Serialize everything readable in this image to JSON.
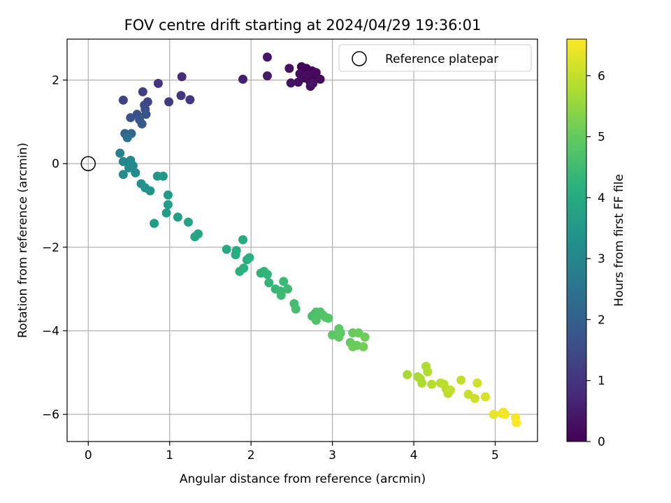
{
  "chart_data": {
    "type": "scatter",
    "title": "FOV centre drift starting at 2024/04/29 19:36:01",
    "xlabel": "Angular distance from reference (arcmin)",
    "ylabel": "Rotation from reference (arcmin)",
    "xlim": [
      -0.26,
      5.52
    ],
    "ylim": [
      -6.65,
      2.98
    ],
    "xticks": [
      0,
      1,
      2,
      3,
      4,
      5
    ],
    "yticks": [
      -6,
      -4,
      -2,
      0,
      2
    ],
    "grid": true,
    "legend": {
      "location": "top-right",
      "entries": [
        {
          "label": "Reference platepar",
          "marker": "open-circle"
        }
      ]
    },
    "reference_point": {
      "x": 0,
      "y": 0
    },
    "colorbar": {
      "label": "Hours from first FF file",
      "range": [
        0,
        6.6
      ],
      "ticks": [
        0,
        1,
        2,
        3,
        4,
        5,
        6
      ],
      "colormap": "viridis"
    },
    "series": [
      {
        "color_key": "hours",
        "points": [
          {
            "x": 2.68,
            "y": 2.28,
            "c": 0.02
          },
          {
            "x": 2.75,
            "y": 2.22,
            "c": 0.05
          },
          {
            "x": 2.62,
            "y": 2.32,
            "c": 0.08
          },
          {
            "x": 2.78,
            "y": 2.1,
            "c": 0.1
          },
          {
            "x": 2.65,
            "y": 2.05,
            "c": 0.12
          },
          {
            "x": 2.72,
            "y": 1.98,
            "c": 0.14
          },
          {
            "x": 2.8,
            "y": 2.18,
            "c": 0.16
          },
          {
            "x": 2.7,
            "y": 2.12,
            "c": 0.18
          },
          {
            "x": 2.85,
            "y": 2.02,
            "c": 0.2
          },
          {
            "x": 2.6,
            "y": 2.15,
            "c": 0.22
          },
          {
            "x": 2.73,
            "y": 1.85,
            "c": 0.24
          },
          {
            "x": 2.58,
            "y": 1.95,
            "c": 0.26
          },
          {
            "x": 2.47,
            "y": 2.28,
            "c": 0.3
          },
          {
            "x": 2.49,
            "y": 1.93,
            "c": 0.33
          },
          {
            "x": 2.76,
            "y": 1.92,
            "c": 0.36
          },
          {
            "x": 2.2,
            "y": 2.55,
            "c": 0.42
          },
          {
            "x": 2.2,
            "y": 2.1,
            "c": 0.46
          },
          {
            "x": 1.9,
            "y": 2.02,
            "c": 0.55
          },
          {
            "x": 1.15,
            "y": 2.08,
            "c": 0.8
          },
          {
            "x": 0.86,
            "y": 1.92,
            "c": 0.95
          },
          {
            "x": 1.14,
            "y": 1.63,
            "c": 1.05
          },
          {
            "x": 1.25,
            "y": 1.53,
            "c": 1.1
          },
          {
            "x": 0.99,
            "y": 1.48,
            "c": 1.15
          },
          {
            "x": 0.67,
            "y": 1.72,
            "c": 1.25
          },
          {
            "x": 0.43,
            "y": 1.52,
            "c": 1.3
          },
          {
            "x": 0.73,
            "y": 1.48,
            "c": 1.4
          },
          {
            "x": 0.69,
            "y": 1.4,
            "c": 1.45
          },
          {
            "x": 0.7,
            "y": 1.3,
            "c": 1.55
          },
          {
            "x": 0.6,
            "y": 1.18,
            "c": 1.6
          },
          {
            "x": 0.71,
            "y": 1.18,
            "c": 1.65
          },
          {
            "x": 0.52,
            "y": 1.1,
            "c": 1.7
          },
          {
            "x": 0.63,
            "y": 1.05,
            "c": 1.75
          },
          {
            "x": 0.66,
            "y": 0.95,
            "c": 1.85
          },
          {
            "x": 0.45,
            "y": 0.72,
            "c": 2.1
          },
          {
            "x": 0.53,
            "y": 0.72,
            "c": 2.2
          },
          {
            "x": 0.48,
            "y": 0.62,
            "c": 2.4
          },
          {
            "x": 0.39,
            "y": 0.25,
            "c": 2.9
          },
          {
            "x": 0.43,
            "y": 0.05,
            "c": 3.0
          },
          {
            "x": 0.52,
            "y": 0.08,
            "c": 3.05
          },
          {
            "x": 0.55,
            "y": -0.05,
            "c": 3.1
          },
          {
            "x": 0.5,
            "y": -0.1,
            "c": 3.12
          },
          {
            "x": 0.58,
            "y": -0.22,
            "c": 3.15
          },
          {
            "x": 0.43,
            "y": -0.26,
            "c": 3.2
          },
          {
            "x": 0.65,
            "y": -0.48,
            "c": 3.3
          },
          {
            "x": 0.7,
            "y": -0.58,
            "c": 3.35
          },
          {
            "x": 0.76,
            "y": -0.65,
            "c": 3.4
          },
          {
            "x": 0.85,
            "y": -0.3,
            "c": 3.45
          },
          {
            "x": 0.92,
            "y": -0.3,
            "c": 3.5
          },
          {
            "x": 0.98,
            "y": -0.75,
            "c": 3.55
          },
          {
            "x": 0.98,
            "y": -0.98,
            "c": 3.6
          },
          {
            "x": 0.96,
            "y": -1.18,
            "c": 3.62
          },
          {
            "x": 0.81,
            "y": -1.43,
            "c": 3.65
          },
          {
            "x": 1.1,
            "y": -1.28,
            "c": 3.7
          },
          {
            "x": 1.23,
            "y": -1.4,
            "c": 3.75
          },
          {
            "x": 1.31,
            "y": -1.75,
            "c": 3.8
          },
          {
            "x": 1.35,
            "y": -1.68,
            "c": 3.85
          },
          {
            "x": 1.7,
            "y": -2.05,
            "c": 4.0
          },
          {
            "x": 1.82,
            "y": -2.08,
            "c": 4.05
          },
          {
            "x": 1.81,
            "y": -2.18,
            "c": 4.08
          },
          {
            "x": 1.9,
            "y": -1.82,
            "c": 4.1
          },
          {
            "x": 1.95,
            "y": -2.3,
            "c": 4.12
          },
          {
            "x": 1.98,
            "y": -2.25,
            "c": 4.15
          },
          {
            "x": 1.91,
            "y": -2.5,
            "c": 4.18
          },
          {
            "x": 1.86,
            "y": -2.58,
            "c": 4.2
          },
          {
            "x": 2.12,
            "y": -2.62,
            "c": 4.25
          },
          {
            "x": 2.16,
            "y": -2.58,
            "c": 4.28
          },
          {
            "x": 2.2,
            "y": -2.65,
            "c": 4.3
          },
          {
            "x": 2.22,
            "y": -2.85,
            "c": 4.32
          },
          {
            "x": 2.3,
            "y": -3.0,
            "c": 4.38
          },
          {
            "x": 2.36,
            "y": -3.05,
            "c": 4.4
          },
          {
            "x": 2.4,
            "y": -2.82,
            "c": 4.42
          },
          {
            "x": 2.45,
            "y": -3.0,
            "c": 4.45
          },
          {
            "x": 2.37,
            "y": -3.15,
            "c": 4.48
          },
          {
            "x": 2.53,
            "y": -3.35,
            "c": 4.55
          },
          {
            "x": 2.55,
            "y": -3.48,
            "c": 4.58
          },
          {
            "x": 2.75,
            "y": -3.65,
            "c": 4.65
          },
          {
            "x": 2.78,
            "y": -3.6,
            "c": 4.68
          },
          {
            "x": 2.8,
            "y": -3.55,
            "c": 4.7
          },
          {
            "x": 2.85,
            "y": -3.55,
            "c": 4.72
          },
          {
            "x": 2.8,
            "y": -3.75,
            "c": 4.75
          },
          {
            "x": 2.88,
            "y": -3.62,
            "c": 4.78
          },
          {
            "x": 2.92,
            "y": -3.68,
            "c": 4.8
          },
          {
            "x": 2.95,
            "y": -3.7,
            "c": 4.82
          },
          {
            "x": 3.0,
            "y": -4.1,
            "c": 4.9
          },
          {
            "x": 3.08,
            "y": -3.95,
            "c": 4.92
          },
          {
            "x": 3.1,
            "y": -4.05,
            "c": 4.95
          },
          {
            "x": 3.08,
            "y": -4.15,
            "c": 4.97
          },
          {
            "x": 3.22,
            "y": -4.28,
            "c": 5.0
          },
          {
            "x": 3.25,
            "y": -4.05,
            "c": 5.02
          },
          {
            "x": 3.32,
            "y": -4.05,
            "c": 5.05
          },
          {
            "x": 3.3,
            "y": -4.35,
            "c": 5.08
          },
          {
            "x": 3.25,
            "y": -4.38,
            "c": 5.1
          },
          {
            "x": 3.4,
            "y": -4.15,
            "c": 5.12
          },
          {
            "x": 3.38,
            "y": -4.38,
            "c": 5.15
          },
          {
            "x": 3.92,
            "y": -5.05,
            "c": 5.7
          },
          {
            "x": 4.05,
            "y": -5.1,
            "c": 5.72
          },
          {
            "x": 4.08,
            "y": -5.15,
            "c": 5.75
          },
          {
            "x": 4.1,
            "y": -5.25,
            "c": 5.78
          },
          {
            "x": 4.15,
            "y": -4.85,
            "c": 5.8
          },
          {
            "x": 4.17,
            "y": -4.98,
            "c": 5.82
          },
          {
            "x": 4.22,
            "y": -5.28,
            "c": 5.85
          },
          {
            "x": 4.33,
            "y": -5.25,
            "c": 5.88
          },
          {
            "x": 4.37,
            "y": -5.28,
            "c": 5.9
          },
          {
            "x": 4.4,
            "y": -5.4,
            "c": 5.92
          },
          {
            "x": 4.42,
            "y": -5.5,
            "c": 5.94
          },
          {
            "x": 4.45,
            "y": -5.42,
            "c": 5.96
          },
          {
            "x": 4.58,
            "y": -5.18,
            "c": 6.0
          },
          {
            "x": 4.67,
            "y": -5.52,
            "c": 6.05
          },
          {
            "x": 4.75,
            "y": -5.62,
            "c": 6.1
          },
          {
            "x": 4.78,
            "y": -5.25,
            "c": 6.12
          },
          {
            "x": 4.88,
            "y": -5.58,
            "c": 6.2
          },
          {
            "x": 4.98,
            "y": -6.0,
            "c": 6.4
          },
          {
            "x": 5.08,
            "y": -5.98,
            "c": 6.45
          },
          {
            "x": 5.1,
            "y": -5.95,
            "c": 6.48
          },
          {
            "x": 5.12,
            "y": -6.0,
            "c": 6.5
          },
          {
            "x": 5.25,
            "y": -6.08,
            "c": 6.55
          },
          {
            "x": 5.26,
            "y": -6.2,
            "c": 6.58
          }
        ]
      }
    ]
  }
}
